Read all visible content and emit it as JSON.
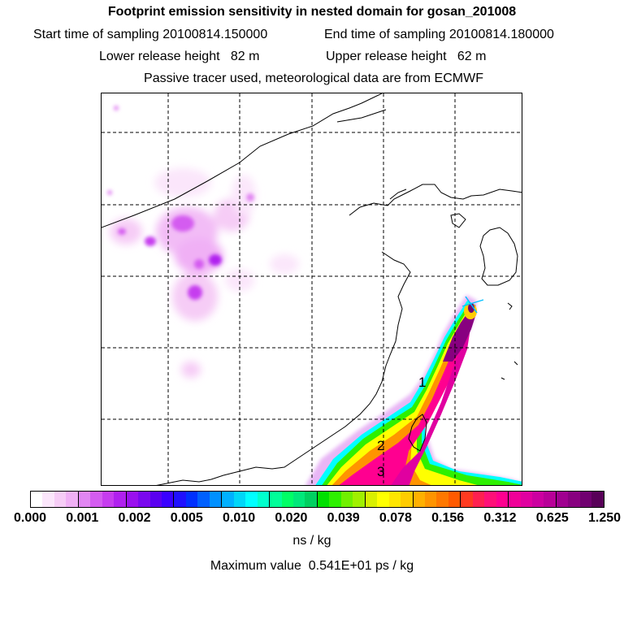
{
  "header": {
    "title": "Footprint emission sensitivity in nested domain for gosan_201008",
    "start_label": "Start time of sampling",
    "start_value": "20100814.150000",
    "end_label": "End time of sampling",
    "end_value": "20100814.180000",
    "lower_label": "Lower release height",
    "lower_value": "82 m",
    "upper_label": "Upper release height",
    "upper_value": "62 m",
    "tracer_line": "Passive tracer used, meteorological data are from ECMWF"
  },
  "map": {
    "point_labels": [
      "1",
      "2",
      "3"
    ]
  },
  "colorbar": {
    "tick_labels": [
      "0.000",
      "0.001",
      "0.002",
      "0.005",
      "0.010",
      "0.020",
      "0.039",
      "0.078",
      "0.156",
      "0.312",
      "0.625",
      "1.250"
    ],
    "colors": [
      "#ffffff",
      "#fbe6fb",
      "#f6ccf6",
      "#f0b0f5",
      "#e186f2",
      "#d45cf0",
      "#c63cef",
      "#b020ef",
      "#9a10ef",
      "#7a08ef",
      "#5a00f0",
      "#3a00ff",
      "#2010ff",
      "#0030ff",
      "#0060ff",
      "#0090ff",
      "#00b0ff",
      "#00d6f8",
      "#00ffff",
      "#00ffcc",
      "#00ff99",
      "#00ff66",
      "#00e87a",
      "#00d060",
      "#00e000",
      "#2ef000",
      "#70f000",
      "#a0f000",
      "#d8f000",
      "#ffff00",
      "#ffe600",
      "#ffcc00",
      "#ffb000",
      "#ff9400",
      "#ff7800",
      "#ff5a00",
      "#ff3a20",
      "#ff2050",
      "#ff1078",
      "#ff0090",
      "#f00098",
      "#e000a0",
      "#cc00a0",
      "#b80098",
      "#a00090",
      "#880080",
      "#700070",
      "#580058"
    ]
  },
  "unit": "ns / kg",
  "max_label": "Maximum value",
  "max_value": "0.541E+01 ps / kg"
}
